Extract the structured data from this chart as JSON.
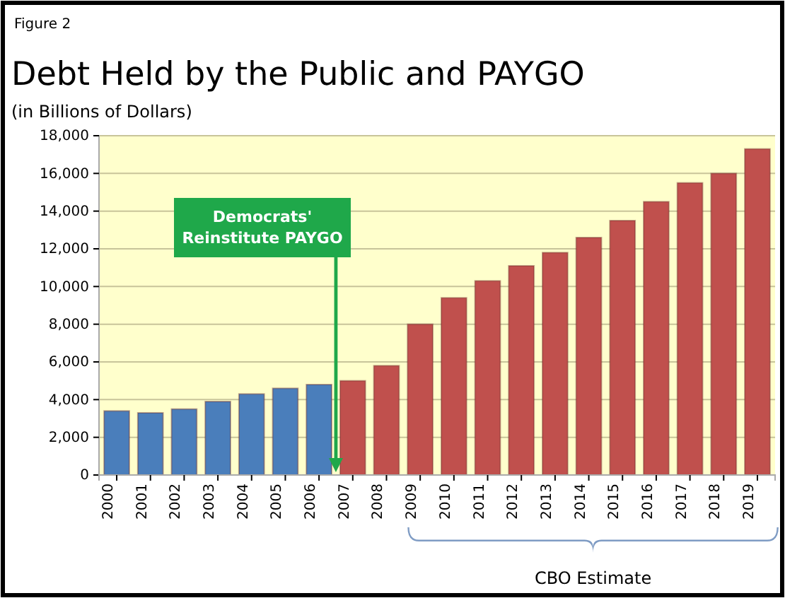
{
  "chart_data": {
    "type": "bar",
    "title": "Debt Held by the Public and PAYGO",
    "subtitle": "(in Billions of Dollars)",
    "categories": [
      "2000",
      "2001",
      "2002",
      "2003",
      "2004",
      "2005",
      "2006",
      "2007",
      "2008",
      "2009",
      "2010",
      "2011",
      "2012",
      "2013",
      "2014",
      "2015",
      "2016",
      "2017",
      "2018",
      "2019"
    ],
    "values": [
      3400,
      3300,
      3500,
      3900,
      4300,
      4600,
      4800,
      5000,
      5800,
      8000,
      9400,
      10300,
      11100,
      11800,
      12600,
      13500,
      14500,
      15500,
      16000,
      17300
    ],
    "colors": [
      "#4a7ebb",
      "#4a7ebb",
      "#4a7ebb",
      "#4a7ebb",
      "#4a7ebb",
      "#4a7ebb",
      "#4a7ebb",
      "#c0504d",
      "#c0504d",
      "#c0504d",
      "#c0504d",
      "#c0504d",
      "#c0504d",
      "#c0504d",
      "#c0504d",
      "#c0504d",
      "#c0504d",
      "#c0504d",
      "#c0504d",
      "#c0504d"
    ],
    "ylim": [
      0,
      18000
    ],
    "yticks": [
      {
        "value": 0,
        "label": "0"
      },
      {
        "value": 2000,
        "label": "2,000"
      },
      {
        "value": 4000,
        "label": "4,000"
      },
      {
        "value": 6000,
        "label": "6,000"
      },
      {
        "value": 8000,
        "label": "8,000"
      },
      {
        "value": 10000,
        "label": "10,000"
      },
      {
        "value": 12000,
        "label": "12,000"
      },
      {
        "value": 14000,
        "label": "14,000"
      },
      {
        "value": 16000,
        "label": "16,000"
      },
      {
        "value": 18000,
        "label": "18,000"
      }
    ],
    "grid": "y",
    "annotations": [
      "Figure 2",
      "Democrats' Reinstitute PAYGO",
      "CBO Estimate"
    ]
  }
}
